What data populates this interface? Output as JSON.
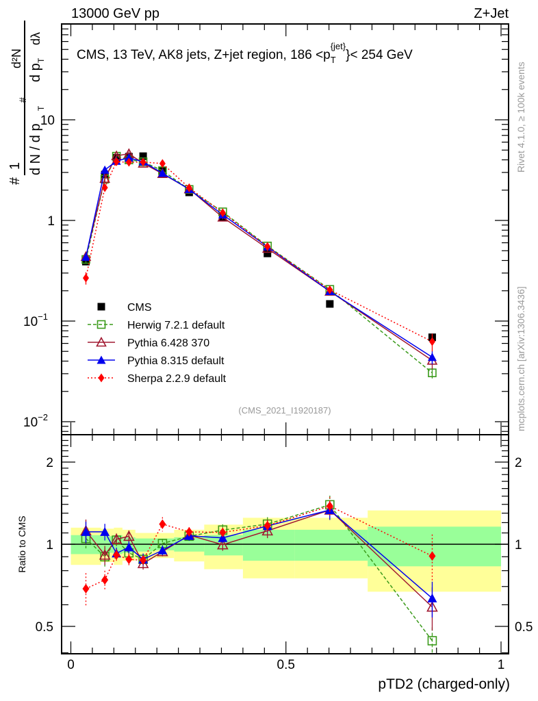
{
  "chart_data": {
    "type": "scatter",
    "header_left": "13000 GeV pp",
    "header_right": "Z+Jet",
    "title": "CMS, 13 TeV, AK8 jets, Z+jet region, 186 <p",
    "title_sub": "T",
    "title_sup": "{jet}",
    "title_end": "}< 254 GeV",
    "analysis_id": "(CMS_2021_I1920187)",
    "side_text_top": "Rivet 4.1.0, ≥ 100k events",
    "side_text_bottom": "mcplots.cern.ch [arXiv:1306.3436]",
    "ylabel_parts": {
      "hash": "#",
      "one": "1",
      "den1": "d N / d p",
      "T": "T",
      "num2": "d²N",
      "den2": "d p",
      "lambda": "dλ"
    },
    "ratio_ylabel": "Ratio to CMS",
    "xlabel": "pTD2 (charged-only)",
    "xlim": [
      0,
      1
    ],
    "ylim": [
      0.0074,
      89
    ],
    "yscale": "log",
    "ratio_ylim": [
      0.4,
      2.45
    ],
    "ratio_yscale": "log",
    "x_ticks": [
      "0",
      "0.5",
      "1"
    ],
    "y_ticks": [
      {
        "v": 10,
        "label": "10"
      },
      {
        "v": 1,
        "label": "1"
      },
      {
        "v": 0.1,
        "label": "10",
        "exp": "−1"
      },
      {
        "v": 0.01,
        "label": "10",
        "exp": "−2"
      }
    ],
    "ratio_ticks": [
      {
        "v": 2,
        "label": "2"
      },
      {
        "v": 1,
        "label": "1"
      },
      {
        "v": 0.5,
        "label": "0.5"
      }
    ],
    "x": [
      0.035,
      0.079,
      0.106,
      0.135,
      0.168,
      0.213,
      0.275,
      0.353,
      0.457,
      0.602,
      0.84
    ],
    "bin_edges": [
      0,
      0.07,
      0.1,
      0.12,
      0.15,
      0.19,
      0.24,
      0.31,
      0.4,
      0.52,
      0.69,
      1.0
    ],
    "band_total": [
      [
        0.84,
        1.15
      ],
      [
        0.86,
        1.14
      ],
      [
        0.84,
        1.15
      ],
      [
        0.87,
        1.13
      ],
      [
        0.88,
        1.1
      ],
      [
        0.89,
        1.1
      ],
      [
        0.865,
        1.13
      ],
      [
        0.81,
        1.18
      ],
      [
        0.75,
        1.25
      ],
      [
        0.75,
        1.25
      ],
      [
        0.67,
        1.33
      ]
    ],
    "band_stat": [
      [
        0.92,
        1.08
      ],
      [
        0.93,
        1.07
      ],
      [
        0.92,
        1.08
      ],
      [
        0.93,
        1.06
      ],
      [
        0.94,
        1.05
      ],
      [
        0.95,
        1.05
      ],
      [
        0.94,
        1.06
      ],
      [
        0.91,
        1.08
      ],
      [
        0.87,
        1.13
      ],
      [
        0.87,
        1.13
      ],
      [
        0.83,
        1.16
      ]
    ],
    "data": {
      "name": "CMS",
      "values": [
        0.39,
        2.86,
        4.2,
        4.3,
        4.35,
        3.1,
        1.9,
        1.08,
        0.47,
        0.148,
        0.069
      ],
      "color": "#000000"
    },
    "series": [
      {
        "name": "Herwig 7.2.1 default",
        "color": "#3a9a1a",
        "marker": "open-square",
        "line": "dashed",
        "ratio": [
          1.05,
          0.9,
          1.035,
          0.93,
          0.88,
          1.006,
          1.07,
          1.127,
          1.185,
          1.395,
          0.443
        ],
        "rel_err": [
          0.08,
          0.08,
          0.05,
          0.05,
          0.05,
          0.04,
          0.04,
          0.05,
          0.06,
          0.08,
          0.12
        ]
      },
      {
        "name": "Pythia 6.428 370",
        "color": "#a01830",
        "marker": "open-triangle",
        "line": "solid",
        "ratio": [
          1.12,
          0.913,
          1.043,
          1.07,
          0.85,
          0.94,
          1.08,
          0.996,
          1.12,
          1.335,
          0.589
        ],
        "rel_err": [
          0.1,
          0.08,
          0.05,
          0.05,
          0.05,
          0.04,
          0.04,
          0.05,
          0.06,
          0.08,
          0.18
        ]
      },
      {
        "name": "Pythia 8.315 default",
        "color": "#0000ee",
        "marker": "filled-triangle",
        "line": "solid",
        "ratio": [
          1.11,
          1.11,
          0.926,
          0.975,
          0.88,
          0.95,
          1.074,
          1.055,
          1.167,
          1.335,
          0.634
        ],
        "rel_err": [
          0.09,
          0.07,
          0.05,
          0.05,
          0.05,
          0.04,
          0.04,
          0.04,
          0.05,
          0.08,
          0.15
        ]
      },
      {
        "name": "Sherpa 2.2.9 default",
        "color": "#ff0000",
        "marker": "filled-diamond",
        "line": "dotted",
        "ratio": [
          0.687,
          0.74,
          0.913,
          0.88,
          0.874,
          1.185,
          1.11,
          1.105,
          1.17,
          1.38,
          0.905
        ],
        "rel_err": [
          0.14,
          0.08,
          0.05,
          0.05,
          0.04,
          0.06,
          0.04,
          0.04,
          0.05,
          0.08,
          0.2
        ]
      }
    ]
  }
}
